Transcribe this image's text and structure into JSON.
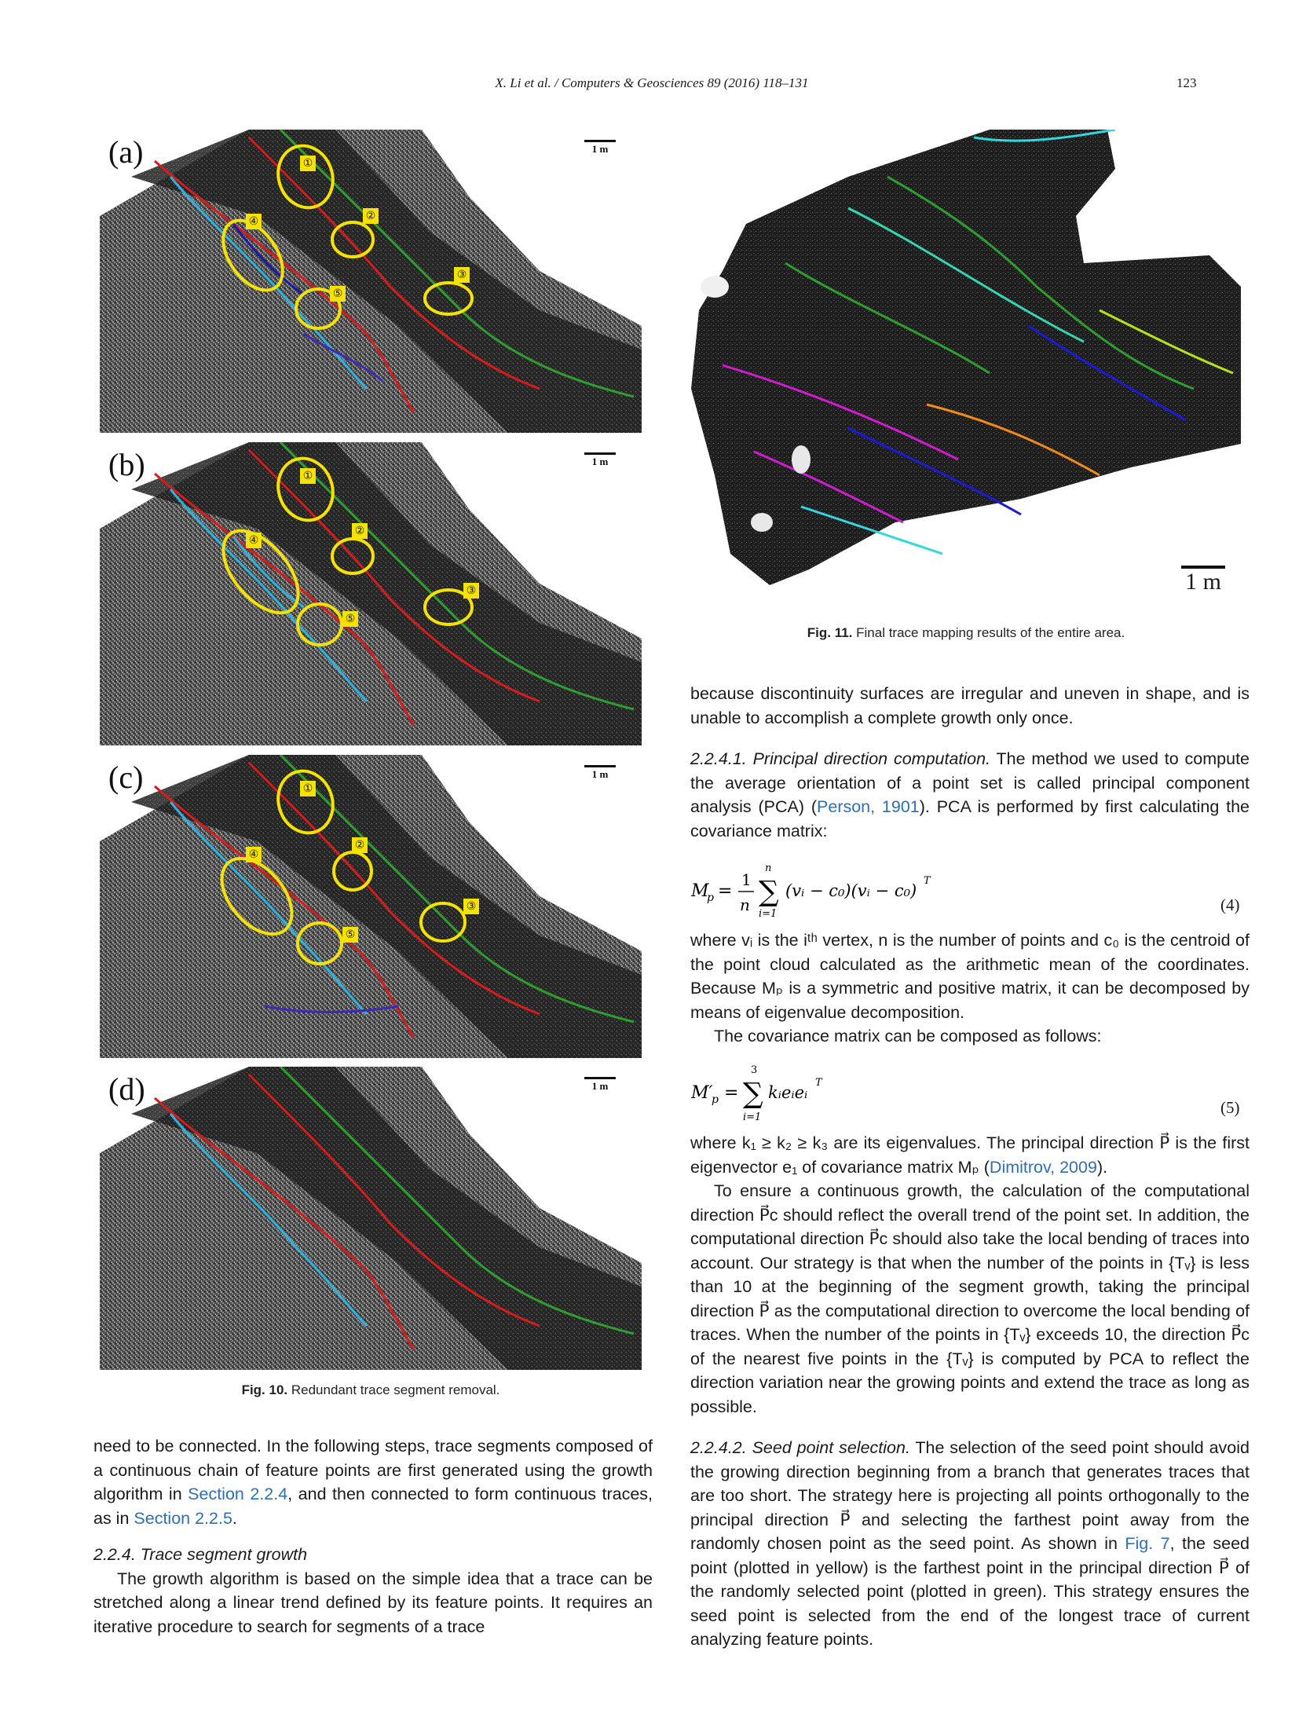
{
  "header": {
    "running_head": "X. Li et al. / Computers & Geosciences 89 (2016) 118–131",
    "page_number": "123"
  },
  "figure10": {
    "panels": [
      {
        "label": "(a)",
        "scale": "1 m"
      },
      {
        "label": "(b)",
        "scale": "1 m"
      },
      {
        "label": "(c)",
        "scale": "1 m"
      },
      {
        "label": "(d)",
        "scale": "1 m"
      }
    ],
    "markers": [
      "①",
      "②",
      "③",
      "④",
      "⑤"
    ],
    "caption_label": "Fig. 10.",
    "caption_text": "Redundant trace segment removal."
  },
  "figure11": {
    "scale": "1 m",
    "caption_label": "Fig. 11.",
    "caption_text": "Final trace mapping results of the entire area."
  },
  "left_column": {
    "p1_a": "need to be connected. In the following steps, trace segments composed of a continuous chain of feature points are first generated using the growth algorithm in ",
    "p1_link1": "Section 2.2.4",
    "p1_b": ", and then connected to form continuous traces, as in ",
    "p1_link2": "Section 2.2.5",
    "p1_c": ".",
    "heading": "2.2.4.  Trace segment growth",
    "p2": "The growth algorithm is based on the simple idea that a trace can be stretched along a linear trend defined by its feature points. It requires an iterative procedure to search for segments of a trace"
  },
  "right_column": {
    "p0": "because discontinuity surfaces are irregular and uneven in shape, and is unable to accomplish a complete growth only once.",
    "h1": "2.2.4.1. Principal direction computation.",
    "p1_a": " The method we used to compute the average orientation of a point set is called principal component analysis (PCA) (",
    "p1_link": "Person, 1901",
    "p1_b": "). PCA is performed by first calculating the covariance matrix:",
    "eq4_num": "(4)",
    "p2": "where vᵢ is the iᵗʰ vertex, n is the number of points and c₀ is the centroid of the point cloud calculated as the arithmetic mean of the coordinates. Because Mₚ is a symmetric and positive matrix, it can be decomposed by means of eigenvalue decomposition.",
    "p3": "The covariance matrix can be composed as follows:",
    "eq5_num": "(5)",
    "p4_a": "where k₁ ≥ k₂ ≥ k₃ are its eigenvalues. The principal direction P⃗ is the first eigenvector e₁ of covariance matrix Mₚ (",
    "p4_link": "Dimitrov, 2009",
    "p4_b": ").",
    "p5": "To ensure a continuous growth, the calculation of the computational direction P⃗c should reflect the overall trend of the point set. In addition, the computational direction P⃗c should also take the local bending of traces into account. Our strategy is that when the number of the points in {Tᵥ} is less than 10 at the beginning of the segment growth, taking the principal direction P⃗ as the computational direction to overcome the local bending of traces. When the number of the points in {Tᵥ} exceeds 10, the direction P⃗c of the nearest five points in the {Tᵥ} is computed by PCA to reflect the direction variation near the growing points and extend the trace as long as possible.",
    "h2": "2.2.4.2. Seed point selection.",
    "p6_a": " The selection of the seed point should avoid the growing direction beginning from a branch that generates traces that are too short. The strategy here is projecting all points orthogonally to the principal direction P⃗ and selecting the farthest point away from the randomly chosen point as the seed point. As shown in ",
    "p6_link": "Fig. 7",
    "p6_b": ", the seed point (plotted in yellow) is the farthest point in the principal direction P⃗ of the randomly selected point (plotted in green). This strategy ensures the seed point is selected from the end of the longest trace of current analyzing feature points."
  }
}
